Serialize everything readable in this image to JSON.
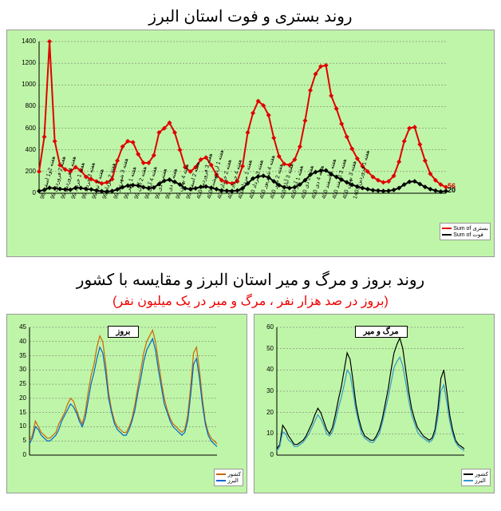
{
  "top_title": "روند بستری و فوت استان البرز",
  "bottom_title": "روند بروز و مرگ و میر استان البرز و مقایسه با کشور",
  "bottom_subtitle": "(بروز در صد هزار نفر ، مرگ و میر در یک میلیون نفر)",
  "chart_top": {
    "type": "line",
    "ylim": [
      0,
      1400
    ],
    "yticks": [
      0,
      200,
      400,
      600,
      800,
      1000,
      1200,
      1400
    ],
    "series": [
      {
        "name": "بستری",
        "color": "#e00000",
        "width": 2,
        "marker": "diamond",
        "marker_size": 3,
        "values": [
          200,
          520,
          1400,
          480,
          260,
          220,
          200,
          240,
          210,
          150,
          130,
          110,
          90,
          100,
          130,
          300,
          430,
          480,
          470,
          360,
          280,
          280,
          350,
          560,
          600,
          650,
          560,
          400,
          240,
          200,
          240,
          310,
          330,
          260,
          170,
          120,
          100,
          90,
          110,
          250,
          560,
          740,
          850,
          810,
          720,
          510,
          340,
          270,
          260,
          310,
          430,
          670,
          950,
          1100,
          1170,
          1180,
          900,
          780,
          640,
          520,
          410,
          320,
          250,
          200,
          150,
          120,
          100,
          110,
          160,
          290,
          480,
          600,
          610,
          450,
          300,
          180,
          120,
          80,
          56
        ]
      },
      {
        "name": "فوت",
        "color": "#000000",
        "width": 2,
        "marker": "diamond",
        "marker_size": 3,
        "values": [
          20,
          30,
          50,
          45,
          40,
          35,
          32,
          50,
          48,
          40,
          35,
          25,
          18,
          15,
          20,
          35,
          55,
          70,
          75,
          70,
          55,
          45,
          52,
          85,
          115,
          125,
          105,
          80,
          45,
          38,
          45,
          58,
          62,
          50,
          38,
          26,
          22,
          20,
          25,
          45,
          90,
          135,
          155,
          160,
          145,
          110,
          75,
          55,
          48,
          55,
          80,
          120,
          170,
          195,
          208,
          210,
          175,
          150,
          125,
          100,
          78,
          62,
          48,
          38,
          28,
          24,
          20,
          22,
          30,
          48,
          80,
          105,
          110,
          85,
          58,
          38,
          24,
          15,
          20
        ]
      }
    ],
    "xlabels": [
      "هفته 2و1 اسفند 98",
      "هفته 2 فروردین 99",
      "هفته 4 فروردین 99",
      "هفته 1 خرداد 99",
      "هفته 3 خرداد 99",
      "هفته 4 تیر 99",
      "هفته 2 مرداد 99",
      "هفته 3 شهریور 99",
      "هفته 1 مهر 99",
      "هفته 2 آبان 99",
      "هفته 4 آبان 99",
      "هفته 1 دی 99",
      "هفته 3 دی 99",
      "هفته 4 بهمن 99",
      "هفته 2 اسفند 99",
      "هفته 3 فروردین 400",
      "هفته 1 اردیبهشت 400",
      "هفته 2 خرداد 400",
      "هفته 4 خرداد 400",
      "هفته 1 مرداد 400",
      "هفته 3 مرداد 400",
      "هفته 4 شهریور 400",
      "هفته 2 مهر 400",
      "هفته 3 آبان 400",
      "هفته 1 آذر 400",
      "هفته 2 دی 400",
      "هفته 4 دی 400",
      "هفته 1 اسفند 400",
      "هفته 3 اسفند 400",
      "هفته 3 بهمن 400",
      "هفته 1 فروردین 1401"
    ],
    "legend_items": [
      {
        "label": "Sum of بستری",
        "color": "#e00000"
      },
      {
        "label": "Sum of فوت",
        "color": "#000000"
      }
    ],
    "end_labels": [
      {
        "text": "56",
        "color": "#e00000"
      },
      {
        "text": "20",
        "color": "#000000"
      }
    ],
    "background_color": "#bff5a8",
    "grid_color": "#666666"
  },
  "chart_left": {
    "type": "line",
    "label": "بروز",
    "ylim": [
      0,
      45
    ],
    "yticks": [
      0,
      5,
      10,
      15,
      20,
      25,
      30,
      35,
      40,
      45
    ],
    "series": [
      {
        "name": "country",
        "color": "#cc6600",
        "width": 1.2,
        "values": [
          5,
          7,
          12,
          10,
          8,
          7,
          6,
          6,
          7,
          8,
          11,
          13,
          15,
          18,
          20,
          19,
          16,
          13,
          11,
          15,
          22,
          28,
          32,
          38,
          42,
          40,
          32,
          22,
          16,
          12,
          10,
          9,
          8,
          8,
          10,
          13,
          18,
          24,
          30,
          36,
          40,
          42,
          44,
          40,
          33,
          26,
          20,
          16,
          13,
          11,
          10,
          9,
          8,
          9,
          14,
          24,
          36,
          38,
          30,
          20,
          12,
          8,
          6,
          5,
          4
        ]
      },
      {
        "name": "alborz",
        "color": "#0066cc",
        "width": 1.2,
        "values": [
          4,
          6,
          10,
          9,
          7,
          6,
          5,
          5,
          6,
          7,
          9,
          12,
          14,
          16,
          18,
          17,
          15,
          12,
          10,
          13,
          19,
          25,
          29,
          34,
          38,
          36,
          29,
          20,
          15,
          11,
          9,
          8,
          7,
          7,
          9,
          12,
          16,
          22,
          27,
          33,
          37,
          39,
          41,
          37,
          30,
          24,
          18,
          15,
          12,
          10,
          9,
          8,
          7,
          8,
          12,
          21,
          32,
          34,
          27,
          18,
          11,
          7,
          5,
          4,
          3
        ]
      }
    ],
    "legend_items": [
      {
        "label": "کشور",
        "color": "#cc6600"
      },
      {
        "label": "البرز",
        "color": "#0066cc"
      }
    ],
    "background_color": "#bff5a8"
  },
  "chart_right": {
    "type": "line",
    "label": "مرگ و میر",
    "ylim": [
      0,
      60
    ],
    "yticks": [
      0,
      10,
      20,
      30,
      40,
      50,
      60
    ],
    "series": [
      {
        "name": "country",
        "color": "#000000",
        "width": 1.2,
        "values": [
          3,
          5,
          14,
          12,
          9,
          7,
          5,
          5,
          6,
          7,
          9,
          12,
          15,
          19,
          22,
          20,
          16,
          12,
          10,
          13,
          19,
          26,
          32,
          40,
          48,
          45,
          35,
          24,
          17,
          12,
          9,
          8,
          7,
          7,
          9,
          12,
          17,
          24,
          31,
          40,
          48,
          52,
          55,
          50,
          40,
          30,
          22,
          17,
          13,
          11,
          9,
          8,
          7,
          8,
          12,
          22,
          36,
          40,
          30,
          19,
          12,
          7,
          5,
          4,
          3
        ]
      },
      {
        "name": "alborz",
        "color": "#3399cc",
        "width": 1.2,
        "values": [
          2,
          4,
          11,
          10,
          7,
          6,
          4,
          4,
          5,
          6,
          8,
          10,
          13,
          16,
          19,
          17,
          14,
          10,
          9,
          11,
          16,
          22,
          27,
          33,
          40,
          38,
          30,
          21,
          15,
          10,
          8,
          7,
          6,
          6,
          8,
          10,
          15,
          21,
          27,
          34,
          41,
          44,
          46,
          42,
          34,
          26,
          19,
          15,
          11,
          9,
          8,
          7,
          6,
          7,
          10,
          18,
          30,
          33,
          25,
          16,
          10,
          6,
          4,
          3,
          2
        ]
      }
    ],
    "legend_items": [
      {
        "label": "کشور",
        "color": "#000000"
      },
      {
        "label": "البرز",
        "color": "#3399cc"
      }
    ],
    "background_color": "#bff5a8"
  }
}
